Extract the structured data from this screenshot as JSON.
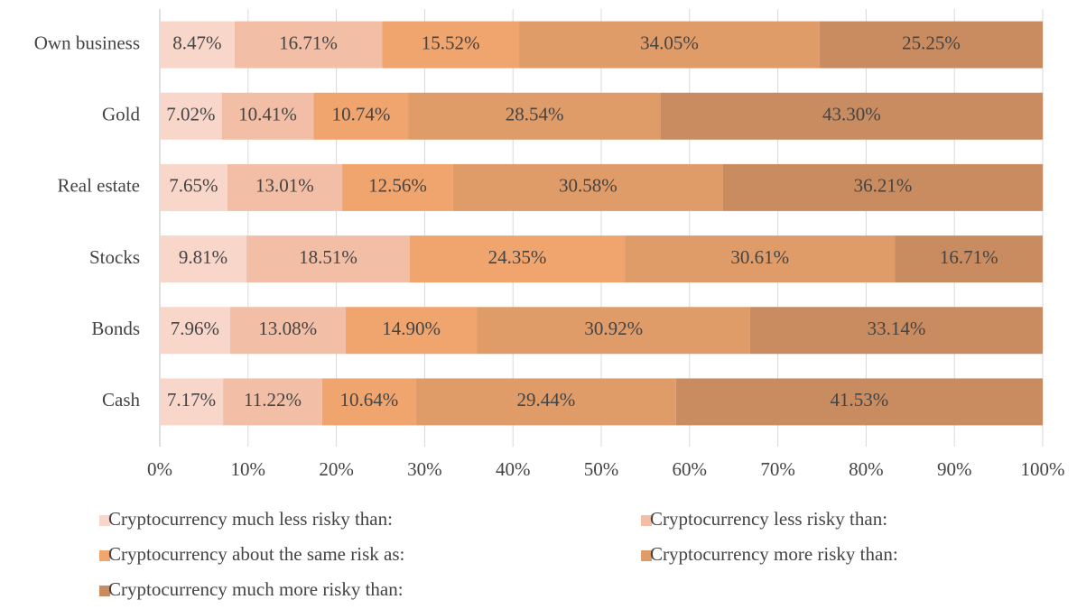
{
  "chart_data": {
    "type": "stacked-barh",
    "categories": [
      "Own business",
      "Gold",
      "Real estate",
      "Stocks",
      "Bonds",
      "Cash"
    ],
    "series": [
      {
        "name": "Cryptocurrency much less risky than:",
        "color": "#f8d6ca",
        "values": [
          8.47,
          7.02,
          7.65,
          9.81,
          7.96,
          7.17
        ],
        "value_labels": [
          "8.47%",
          "7.02%",
          "7.65%",
          "9.81%",
          "7.96%",
          "7.17%"
        ]
      },
      {
        "name": "Cryptocurrency less risky than:",
        "color": "#f3bea6",
        "values": [
          16.71,
          10.41,
          13.01,
          18.51,
          13.08,
          11.22
        ],
        "value_labels": [
          "16.71%",
          "10.41%",
          "13.01%",
          "18.51%",
          "13.08%",
          "11.22%"
        ]
      },
      {
        "name": "Cryptocurrency about the same risk as:",
        "color": "#f0a46e",
        "values": [
          15.52,
          10.74,
          12.56,
          24.35,
          14.9,
          10.64
        ],
        "value_labels": [
          "15.52%",
          "10.74%",
          "12.56%",
          "24.35%",
          "14.90%",
          "10.64%"
        ]
      },
      {
        "name": "Cryptocurrency more risky than:",
        "color": "#df9b68",
        "values": [
          34.05,
          28.54,
          30.58,
          30.61,
          30.92,
          29.44
        ],
        "value_labels": [
          "34.05%",
          "28.54%",
          "30.58%",
          "30.61%",
          "30.92%",
          "29.44%"
        ]
      },
      {
        "name": "Cryptocurrency much more risky than:",
        "color": "#c98b60",
        "values": [
          25.25,
          43.3,
          36.21,
          16.71,
          33.14,
          41.53
        ],
        "value_labels": [
          "25.25%",
          "43.30%",
          "36.21%",
          "16.71%",
          "33.14%",
          "41.53%"
        ]
      }
    ],
    "xlim": [
      0,
      100
    ],
    "xticks": [
      {
        "value": 0,
        "label": "0%"
      },
      {
        "value": 10,
        "label": "10%"
      },
      {
        "value": 20,
        "label": "20%"
      },
      {
        "value": 30,
        "label": "30%"
      },
      {
        "value": 40,
        "label": "40%"
      },
      {
        "value": 50,
        "label": "50%"
      },
      {
        "value": 60,
        "label": "60%"
      },
      {
        "value": 70,
        "label": "70%"
      },
      {
        "value": 80,
        "label": "80%"
      },
      {
        "value": 90,
        "label": "90%"
      },
      {
        "value": 100,
        "label": "100%"
      }
    ],
    "grid": true
  }
}
